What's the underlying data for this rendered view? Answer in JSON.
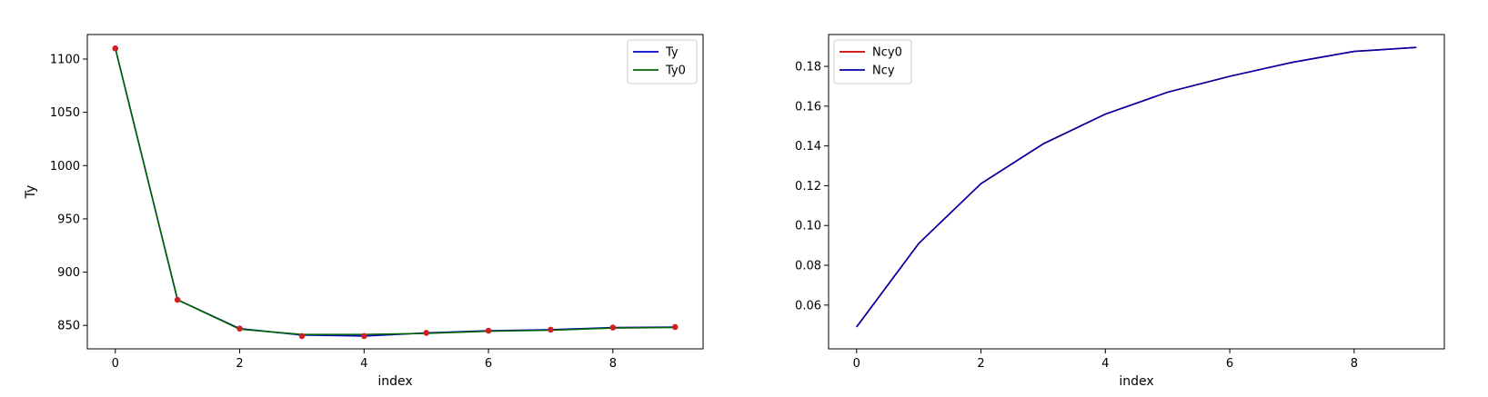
{
  "chart_data": [
    {
      "type": "line",
      "xlabel": "index",
      "ylabel": "Ty",
      "xlim": [
        -0.45,
        9.45
      ],
      "ylim": [
        828,
        1123
      ],
      "xticks": [
        0,
        2,
        4,
        6,
        8
      ],
      "yticks": [
        850,
        900,
        950,
        1000,
        1050,
        1100
      ],
      "grid": false,
      "legend_position": "upper right",
      "x": [
        0,
        1,
        2,
        3,
        4,
        5,
        6,
        7,
        8,
        9
      ],
      "series": [
        {
          "name": "Ty",
          "color": "#0000cc",
          "style": "line",
          "values": [
            1110,
            874,
            847,
            841,
            840,
            843,
            845,
            846,
            848,
            848.5
          ]
        },
        {
          "name": "Ty0",
          "color": "#006400",
          "style": "line",
          "values": [
            1110,
            874,
            846.5,
            841.5,
            841.5,
            842.5,
            844.5,
            845.5,
            847.5,
            848
          ]
        }
      ],
      "markers": {
        "color": "#cc2222",
        "values": [
          1110,
          874,
          847,
          840,
          840,
          843,
          845,
          846,
          848,
          848.5
        ]
      }
    },
    {
      "type": "line",
      "xlabel": "index",
      "ylabel": "",
      "xlim": [
        -0.45,
        9.45
      ],
      "ylim": [
        0.038,
        0.196
      ],
      "xticks": [
        0,
        2,
        4,
        6,
        8
      ],
      "yticks": [
        0.06,
        0.08,
        0.1,
        0.12,
        0.14,
        0.16,
        0.18
      ],
      "ytick_format": 2,
      "grid": false,
      "legend_position": "upper left",
      "x": [
        0,
        1,
        2,
        3,
        4,
        5,
        6,
        7,
        8,
        9
      ],
      "series": [
        {
          "name": "Ncy0",
          "color": "#cc0000",
          "style": "line",
          "values": [
            0.049,
            0.091,
            0.121,
            0.141,
            0.156,
            0.167,
            0.175,
            0.182,
            0.1875,
            0.1895
          ]
        },
        {
          "name": "Ncy",
          "color": "#0000aa",
          "style": "line",
          "values": [
            0.049,
            0.091,
            0.121,
            0.141,
            0.156,
            0.167,
            0.175,
            0.182,
            0.1875,
            0.1895
          ]
        }
      ]
    }
  ]
}
